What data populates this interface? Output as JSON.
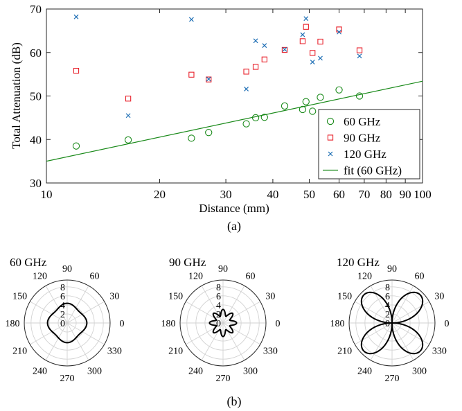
{
  "chart_data": [
    {
      "type": "scatter",
      "xlabel": "Distance (mm)",
      "ylabel": "Total Attenuation (dB)",
      "x_scale": "log",
      "xlim": [
        10,
        100
      ],
      "ylim": [
        30,
        70
      ],
      "x_ticks": [
        10,
        20,
        30,
        40,
        50,
        60,
        70,
        80,
        90,
        100
      ],
      "x_tick_labels": [
        "10",
        "20",
        "30",
        "40",
        "50",
        "60",
        "70",
        "80",
        "90",
        "100"
      ],
      "y_ticks": [
        30,
        40,
        50,
        60,
        70
      ],
      "y_tick_labels": [
        "30",
        "40",
        "50",
        "60",
        "70"
      ],
      "grid": false,
      "legend_position": "bottom-right",
      "caption": "(a)",
      "series": [
        {
          "name": "60 GHz",
          "marker": "circle",
          "color": "#1a8a1a",
          "points": [
            [
              12.0,
              38.5
            ],
            [
              16.5,
              39.9
            ],
            [
              24.3,
              40.3
            ],
            [
              27.0,
              41.6
            ],
            [
              34.0,
              43.6
            ],
            [
              36.0,
              45.0
            ],
            [
              38.0,
              45.1
            ],
            [
              43.0,
              47.7
            ],
            [
              48.0,
              46.9
            ],
            [
              49.0,
              48.7
            ],
            [
              51.0,
              46.5
            ],
            [
              53.5,
              49.7
            ],
            [
              60.0,
              51.4
            ],
            [
              68.0,
              50.0
            ]
          ]
        },
        {
          "name": "90 GHz",
          "marker": "square",
          "color": "#e8202a",
          "points": [
            [
              12.0,
              55.8
            ],
            [
              16.5,
              49.4
            ],
            [
              24.3,
              54.9
            ],
            [
              27.0,
              53.8
            ],
            [
              34.0,
              55.6
            ],
            [
              36.0,
              56.7
            ],
            [
              38.0,
              58.4
            ],
            [
              43.0,
              60.6
            ],
            [
              48.0,
              62.6
            ],
            [
              49.0,
              65.9
            ],
            [
              51.0,
              59.9
            ],
            [
              53.5,
              62.5
            ],
            [
              60.0,
              65.3
            ],
            [
              68.0,
              60.5
            ]
          ]
        },
        {
          "name": "120 GHz",
          "marker": "x",
          "color": "#1f6fb5",
          "points": [
            [
              12.0,
              68.2
            ],
            [
              16.5,
              45.5
            ],
            [
              24.3,
              67.6
            ],
            [
              27.0,
              53.9
            ],
            [
              34.0,
              51.6
            ],
            [
              36.0,
              62.7
            ],
            [
              38.0,
              61.6
            ],
            [
              43.0,
              60.7
            ],
            [
              48.0,
              64.1
            ],
            [
              49.0,
              67.8
            ],
            [
              51.0,
              57.8
            ],
            [
              53.5,
              58.7
            ],
            [
              60.0,
              64.7
            ],
            [
              68.0,
              59.2
            ]
          ]
        },
        {
          "name": "fit (60 GHz)",
          "type": "line",
          "color": "#1a8a1a",
          "x": [
            10,
            100
          ],
          "y": [
            35.0,
            53.4
          ]
        }
      ]
    },
    {
      "type": "polar",
      "title": "60 GHz",
      "r_ticks": [
        "0",
        "2",
        "4",
        "6",
        "8"
      ],
      "angle_ticks": [
        "90",
        "60",
        "30",
        "0",
        "330",
        "300",
        "270",
        "240",
        "210",
        "180",
        "150",
        "120"
      ],
      "curve": {
        "shape": "near-circle",
        "radius": 4.0,
        "lobes": 4,
        "lobe_depth": 0.35
      }
    },
    {
      "type": "polar",
      "title": "90 GHz",
      "r_ticks": [
        "0",
        "2",
        "4",
        "6",
        "8"
      ],
      "angle_ticks": [
        "90",
        "60",
        "30",
        "0",
        "330",
        "300",
        "270",
        "240",
        "210",
        "180",
        "150",
        "120"
      ],
      "curve": {
        "shape": "eight-lobe",
        "radius": 2.3,
        "lobes": 8,
        "lobe_depth": 0.7
      }
    },
    {
      "type": "polar",
      "title": "120 GHz",
      "r_ticks": [
        "0",
        "2",
        "4",
        "6",
        "8"
      ],
      "angle_ticks": [
        "90",
        "60",
        "30",
        "0",
        "330",
        "300",
        "270",
        "240",
        "210",
        "180",
        "150",
        "120"
      ],
      "curve": {
        "shape": "four-lobe",
        "peak": 8.8,
        "peak_angles": [
          45,
          135,
          225,
          315
        ]
      }
    }
  ],
  "caption_b": "(b)"
}
